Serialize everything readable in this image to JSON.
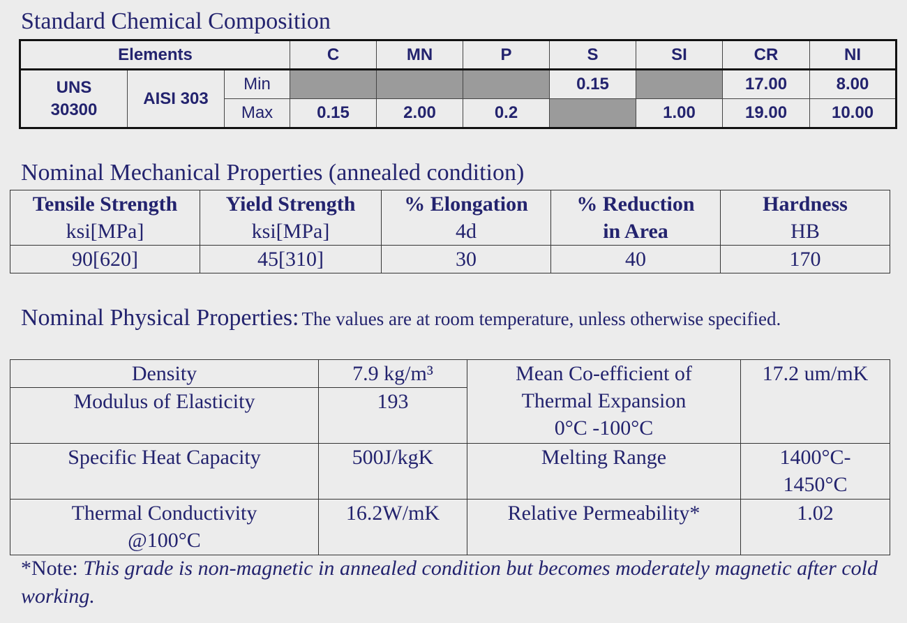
{
  "chemical": {
    "title": "Standard Chemical Composition",
    "elements_label": "Elements",
    "elements": [
      "C",
      "MN",
      "P",
      "S",
      "SI",
      "CR",
      "NI"
    ],
    "uns": "UNS 30300",
    "grade": "AISI 303",
    "rows": [
      {
        "label": "Min",
        "values": [
          null,
          null,
          null,
          "0.15",
          null,
          "17.00",
          "8.00"
        ]
      },
      {
        "label": "Max",
        "values": [
          "0.15",
          "2.00",
          "0.2",
          null,
          "1.00",
          "19.00",
          "10.00"
        ]
      }
    ]
  },
  "mechanical": {
    "title": "Nominal Mechanical Properties (annealed condition)",
    "columns": [
      {
        "name": "Tensile Strength",
        "unit": "ksi[MPa]"
      },
      {
        "name": "Yield Strength",
        "unit": "ksi[MPa]"
      },
      {
        "name": "% Elongation",
        "unit": "4d"
      },
      {
        "name": "% Reduction",
        "unit": "in Area"
      },
      {
        "name": "Hardness",
        "unit": "HB"
      }
    ],
    "values": [
      "90[620]",
      "45[310]",
      "30",
      "40",
      "170"
    ]
  },
  "physical": {
    "title": "Nominal Physical Properties:",
    "note": "The values are at room temperature, unless otherwise specified.",
    "density": {
      "name": "Density",
      "value": "7.9 kg/m³"
    },
    "modulus": {
      "name": "Modulus of Elasticity",
      "value": "193"
    },
    "thermal_expansion": {
      "name": "Mean Co-efficient of Thermal Expansion",
      "condition": "0°C -100°C",
      "value": "17.2 um/mK"
    },
    "specific_heat": {
      "name": "Specific Heat Capacity",
      "value": "500J/kgK"
    },
    "melting_range": {
      "name": "Melting Range",
      "value": "1400°C-1450°C"
    },
    "thermal_conductivity": {
      "name": "Thermal Conductivity",
      "condition": "@100°C",
      "value": "16.2W/mK"
    },
    "permeability": {
      "name": "Relative Permeability*",
      "value": "1.02"
    }
  },
  "footnote": {
    "prefix": "*Note:",
    "text": "This grade is non-magnetic in annealed condition but becomes moderately magnetic after cold working."
  }
}
